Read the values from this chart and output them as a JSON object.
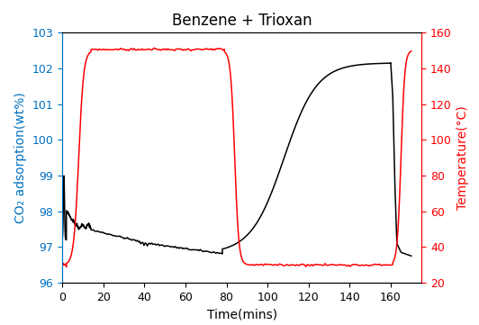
{
  "title": "Benzene + Trioxan",
  "xlabel": "Time(mins)",
  "ylabel_left": "CO₂ adsorption(wt%)",
  "ylabel_right": "Temperature(°C)",
  "xlim": [
    0,
    175
  ],
  "ylim_left": [
    96,
    103
  ],
  "ylim_right": [
    20,
    160
  ],
  "xticks": [
    0,
    20,
    40,
    60,
    80,
    100,
    120,
    140,
    160
  ],
  "yticks_left": [
    96,
    97,
    98,
    99,
    100,
    101,
    102,
    103
  ],
  "yticks_right": [
    20,
    40,
    60,
    80,
    100,
    120,
    140,
    160
  ],
  "left_color": "#0070C0",
  "right_color": "#FF0000",
  "black_color": "#000000",
  "bg_color": "#FFFFFF",
  "figsize": [
    5.32,
    3.61
  ],
  "dpi": 100
}
